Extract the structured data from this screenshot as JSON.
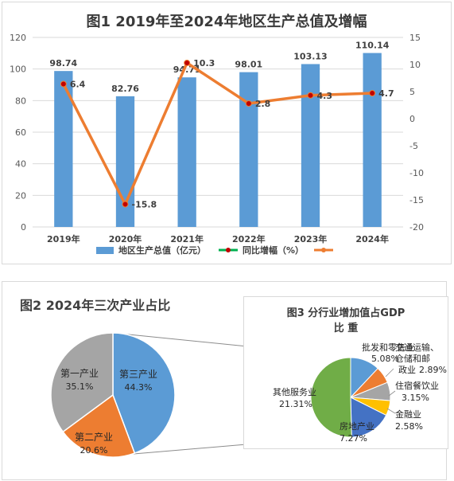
{
  "chart_data": [
    {
      "type": "bar+line",
      "title": "图1 2019年至2024年地区生产总值及增幅",
      "categories": [
        "2019年",
        "2020年",
        "2021年",
        "2022年",
        "2023年",
        "2024年"
      ],
      "series": [
        {
          "name": "地区生产总值（亿元）",
          "type": "bar",
          "axis": "left",
          "color": "#5b9bd5",
          "values": [
            98.74,
            82.76,
            94.71,
            98.01,
            103.13,
            110.14
          ],
          "labels": [
            "98.74",
            "82.76",
            "94.71",
            "98.01",
            "103.13",
            "110.14"
          ]
        },
        {
          "name": "同比增幅（%）",
          "type": "line",
          "axis": "right",
          "color": "#ed7d31",
          "marker_color": "#c00000",
          "values": [
            6.4,
            -15.8,
            10.3,
            2.8,
            4.3,
            4.7
          ],
          "labels": [
            "6.4",
            "-15.8",
            "10.3",
            "2.8",
            "4.3",
            "4.7"
          ]
        }
      ],
      "legend_extra": {
        "color": "#ed7d31"
      },
      "legend_position": "bottom",
      "ylim_left": [
        0,
        120
      ],
      "yticks_left": [
        "0",
        "20",
        "40",
        "60",
        "80",
        "100",
        "120"
      ],
      "ylim_right": [
        -20,
        15
      ],
      "yticks_right": [
        "-20",
        "-15",
        "-10",
        "-5",
        "0",
        "5",
        "10",
        "15"
      ],
      "grid": true
    },
    {
      "type": "pie",
      "title": "图2 2024年三次产业占比",
      "slices": [
        {
          "name": "第三产业",
          "value": 44.3,
          "label": "44.3%",
          "color": "#5b9bd5"
        },
        {
          "name": "第二产业",
          "value": 20.6,
          "label": "20.6%",
          "color": "#ed7d31"
        },
        {
          "name": "第一产业",
          "value": 35.1,
          "label": "35.1%",
          "color": "#a5a5a5"
        }
      ]
    },
    {
      "type": "pie",
      "title_line1": "图3 分行业增加值占GDP",
      "title_line2": "比 重",
      "slices": [
        {
          "name": "批发和零售业",
          "value": 5.08,
          "label": "5.08%",
          "color": "#5b9bd5"
        },
        {
          "name": "交通运输、仓储和邮政业",
          "name_lines": [
            "交通运输、",
            "仓储和邮",
            "政业"
          ],
          "value": 2.89,
          "label": "2.89%",
          "color": "#ed7d31"
        },
        {
          "name": "住宿餐饮业",
          "value": 3.15,
          "label": "3.15%",
          "color": "#a5a5a5"
        },
        {
          "name": "金融业",
          "value": 2.58,
          "label": "2.58%",
          "color": "#ffc000"
        },
        {
          "name": "房地产业",
          "value": 7.27,
          "label": "7.27%",
          "color": "#4472c4"
        },
        {
          "name": "其他服务业",
          "value": 21.31,
          "label": "21.31%",
          "color": "#70ad47"
        }
      ]
    }
  ]
}
